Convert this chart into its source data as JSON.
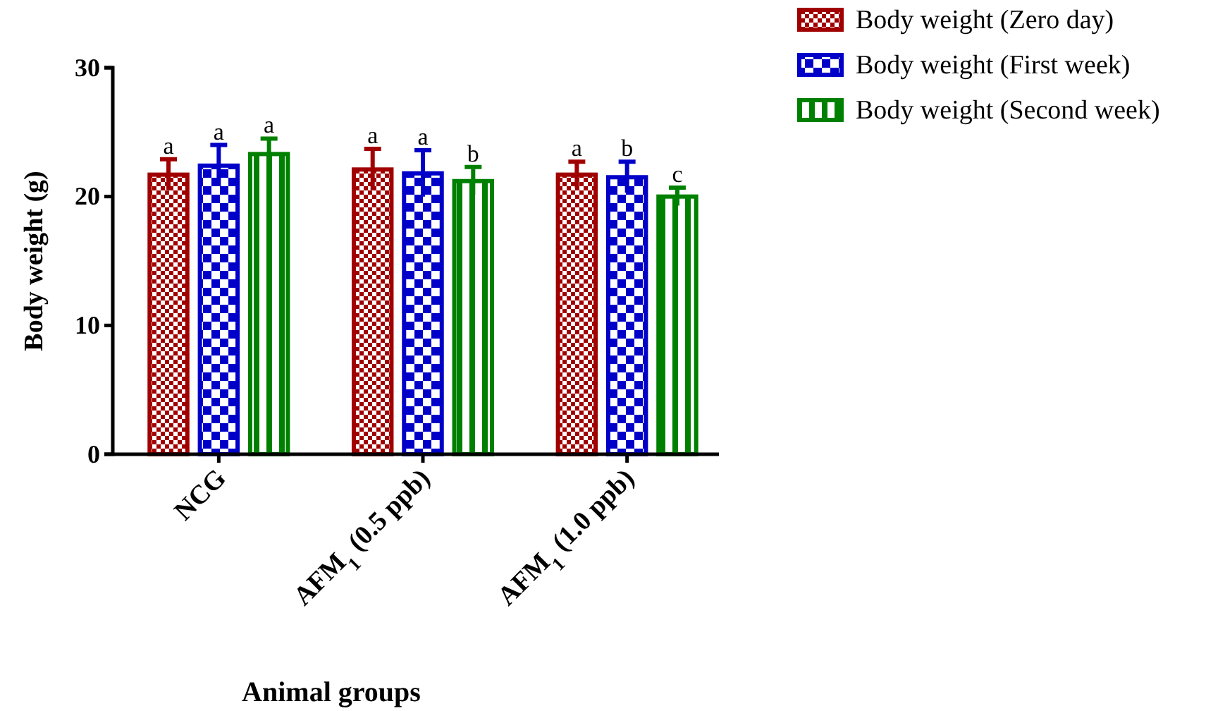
{
  "chart_data": {
    "type": "bar",
    "xlabel": "Animal groups",
    "ylabel": "Body weight (g)",
    "categories": [
      "NCG",
      "AFM$_{1}$ (0.5 ppb)",
      "AFM$_{1}$ (1.0 ppb)"
    ],
    "ylim": [
      0,
      30
    ],
    "yticks": [
      0,
      10,
      20,
      30
    ],
    "grid": false,
    "legend": "top right",
    "series": [
      {
        "name": "Body weight (Zero day)",
        "color": "#a00000",
        "values": [
          21.7,
          22.1,
          21.7
        ],
        "errors": [
          1.2,
          1.6,
          1.0
        ],
        "value_labels": [
          "a",
          "a",
          "a"
        ]
      },
      {
        "name": "Body weight (First week)",
        "color": "#0000c8",
        "values": [
          22.4,
          21.8,
          21.5
        ],
        "errors": [
          1.6,
          1.8,
          1.2
        ],
        "value_labels": [
          "a",
          "a",
          "b"
        ]
      },
      {
        "name": "Body weight (Second week)",
        "color": "#008000",
        "values": [
          23.3,
          21.2,
          20.0
        ],
        "errors": [
          1.2,
          1.1,
          0.7
        ],
        "value_labels": [
          "a",
          "b",
          "c"
        ]
      }
    ]
  }
}
